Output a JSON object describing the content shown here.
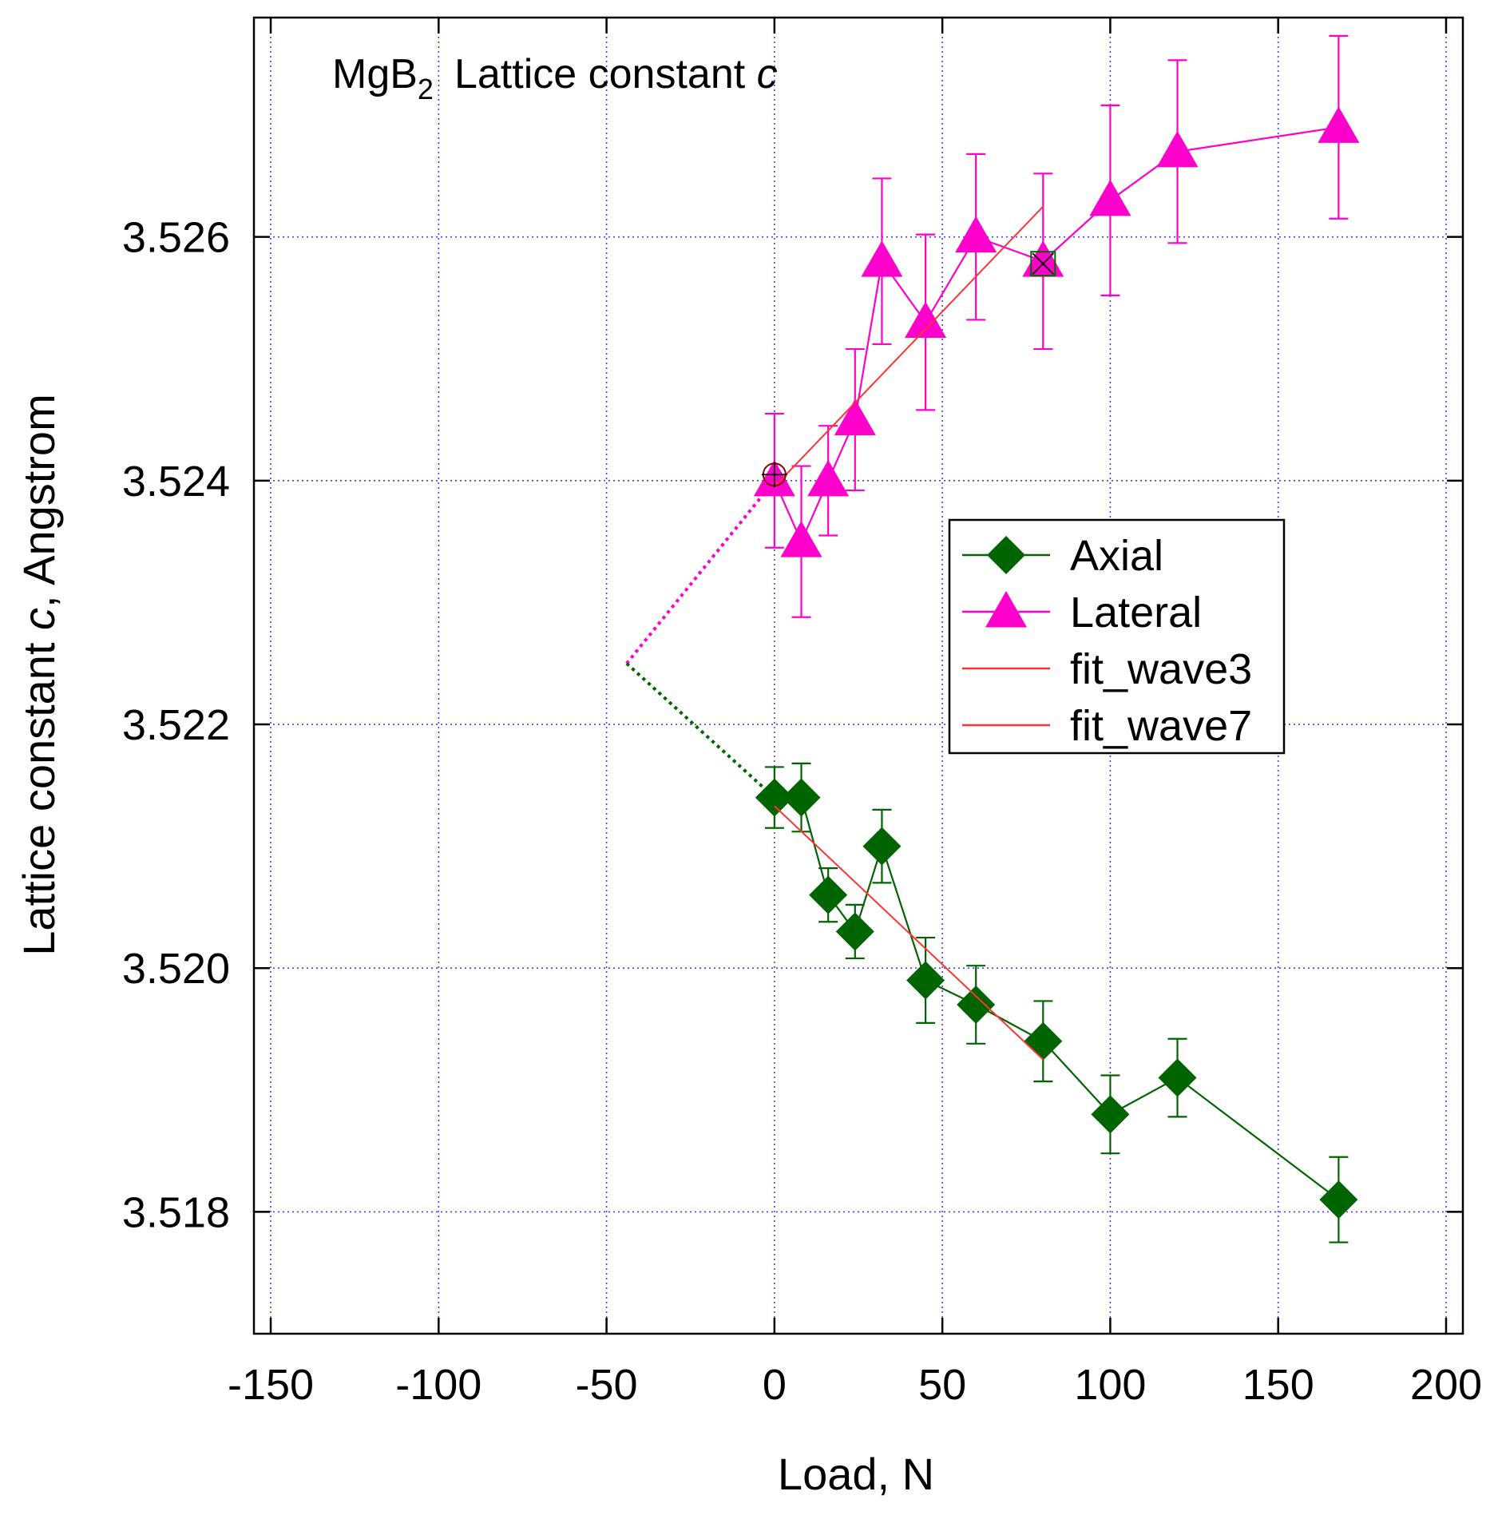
{
  "chart_data": {
    "type": "scatter",
    "title": {
      "prefix": "MgB",
      "subscript": "2",
      "middle": "Lattice constant ",
      "italic": "c"
    },
    "xlabel": "Load, N",
    "ylabel": {
      "prefix": "Lattice constant ",
      "italic": "c",
      "suffix": ", Angstrom"
    },
    "xlim": [
      -155,
      205
    ],
    "ylim": [
      3.517,
      3.5278
    ],
    "xticks": [
      -150,
      -100,
      -50,
      0,
      50,
      100,
      150,
      200
    ],
    "xtick_labels": [
      "-150",
      "-100",
      "-50",
      "0",
      "50",
      "100",
      "150",
      "200"
    ],
    "yticks": [
      3.518,
      3.52,
      3.522,
      3.524,
      3.526
    ],
    "ytick_labels": [
      "3.518",
      "3.520",
      "3.522",
      "3.524",
      "3.526"
    ],
    "grid": true,
    "legend_position": "center-right",
    "series": [
      {
        "name": "Axial",
        "color": "#006400",
        "marker": "diamond",
        "x": [
          0,
          8,
          16,
          24,
          32,
          45,
          60,
          80,
          100,
          120,
          168
        ],
        "y": [
          3.5214,
          3.5214,
          3.5206,
          3.5203,
          3.521,
          3.5199,
          3.5197,
          3.5194,
          3.5188,
          3.5191,
          3.5181
        ],
        "err": [
          0.00025,
          0.00028,
          0.00022,
          0.00022,
          0.0003,
          0.00035,
          0.00032,
          0.00033,
          0.00032,
          0.00032,
          0.00035
        ]
      },
      {
        "name": "Lateral",
        "color": "#ff00cc",
        "marker": "triangle",
        "x": [
          0,
          8,
          16,
          24,
          32,
          45,
          60,
          80,
          100,
          120,
          168
        ],
        "y": [
          3.524,
          3.5235,
          3.524,
          3.5245,
          3.5258,
          3.5253,
          3.526,
          3.5258,
          3.5263,
          3.5267,
          3.5269
        ],
        "err": [
          0.00055,
          0.00062,
          0.00045,
          0.00058,
          0.00068,
          0.00072,
          0.00068,
          0.00072,
          0.00078,
          0.00075,
          0.00075
        ]
      },
      {
        "name": "fit_wave3",
        "color": "#ff3333",
        "marker": "none",
        "x": [
          0,
          80
        ],
        "y": [
          3.52395,
          3.52625
        ]
      },
      {
        "name": "fit_wave7",
        "color": "#ff3333",
        "marker": "none",
        "x": [
          0,
          80
        ],
        "y": [
          3.52133,
          3.51925
        ]
      }
    ],
    "extrapolations": [
      {
        "color": "#ff00cc",
        "x": [
          -44,
          0
        ],
        "y": [
          3.5225,
          3.524
        ]
      },
      {
        "color": "#006400",
        "x": [
          -44,
          0
        ],
        "y": [
          3.5225,
          3.5214
        ]
      }
    ],
    "special_markers": [
      {
        "type": "circle-plus",
        "x": 0,
        "y": 3.52405
      },
      {
        "type": "square-cross",
        "x": 80,
        "y": 3.52578
      }
    ]
  }
}
